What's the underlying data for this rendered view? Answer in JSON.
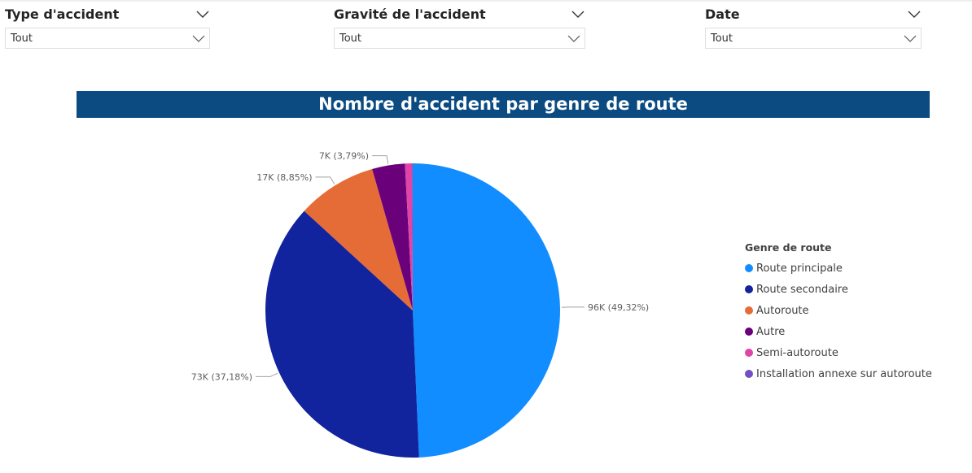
{
  "filters": [
    {
      "label": "Type d'accident",
      "value": "Tout"
    },
    {
      "label": "Gravité de l'accident",
      "value": "Tout"
    },
    {
      "label": "Date",
      "value": "Tout"
    }
  ],
  "chart_data": {
    "type": "pie",
    "title": "Nombre d'accident par genre de route",
    "legend_title": "Genre de route",
    "legend_position": "right",
    "slices": [
      {
        "name": "Route principale",
        "value": 96,
        "percent": 49.32,
        "label": "96K (49,32%)",
        "color": "#118dff"
      },
      {
        "name": "Route secondaire",
        "value": 73,
        "percent": 37.18,
        "label": "73K (37,18%)",
        "color": "#12239e"
      },
      {
        "name": "Autoroute",
        "value": 17,
        "percent": 8.85,
        "label": "17K (8,85%)",
        "color": "#e66c37"
      },
      {
        "name": "Autre",
        "value": 7,
        "percent": 3.79,
        "label": "7K (3,79%)",
        "color": "#6b007b"
      },
      {
        "name": "Semi-autoroute",
        "value": 1.5,
        "percent": 0.78,
        "label": "",
        "color": "#e044a7"
      },
      {
        "name": "Installation annexe sur autoroute",
        "value": 0.15,
        "percent": 0.08,
        "label": "",
        "color": "#744ec2"
      }
    ]
  }
}
